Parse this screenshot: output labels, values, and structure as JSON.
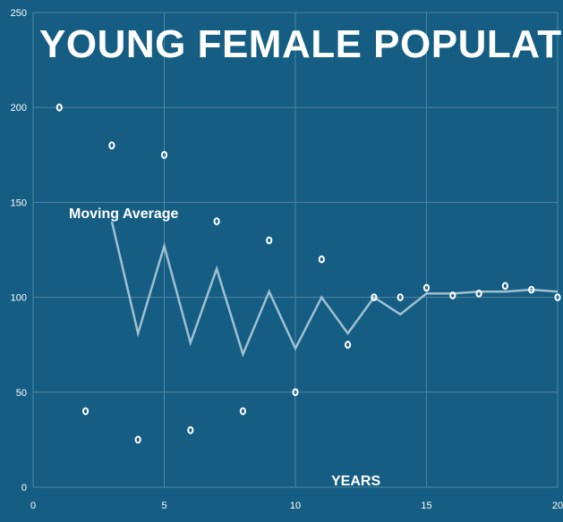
{
  "colors": {
    "background": "#155d82",
    "grid": "#4f86a4",
    "line": "#9fc0d2",
    "marker": "#ffffff",
    "text": "#ffffff"
  },
  "chart_data": {
    "type": "scatter",
    "title": "YOUNG FEMALE POPULATION",
    "xlabel": "YEARS",
    "ylabel": "",
    "xlim": [
      0,
      20
    ],
    "ylim": [
      0,
      250
    ],
    "x_ticks": [
      "0",
      "5",
      "10",
      "15",
      "20"
    ],
    "y_ticks": [
      "0",
      "50",
      "100",
      "150",
      "200",
      "250"
    ],
    "grid": true,
    "annotation": "Moving Average",
    "series": [
      {
        "kind": "scatter",
        "x": [
          1,
          2,
          3,
          4,
          5,
          6,
          7,
          8,
          9,
          10,
          11,
          12,
          13,
          14,
          15,
          16,
          17,
          18,
          19,
          20
        ],
        "y": [
          200,
          40,
          180,
          25,
          175,
          30,
          140,
          40,
          130,
          50,
          120,
          75,
          100,
          100,
          105,
          101,
          102,
          106,
          104,
          100
        ]
      },
      {
        "name": "Moving Average",
        "kind": "line",
        "x": [
          3,
          4,
          5,
          6,
          7,
          8,
          9,
          10,
          11,
          12,
          13,
          14,
          15,
          16,
          17,
          18,
          19,
          20
        ],
        "y": [
          140,
          81,
          127,
          76,
          115,
          70,
          103,
          73,
          100,
          81,
          100,
          91,
          102,
          102,
          103,
          103,
          104,
          103
        ]
      }
    ]
  }
}
